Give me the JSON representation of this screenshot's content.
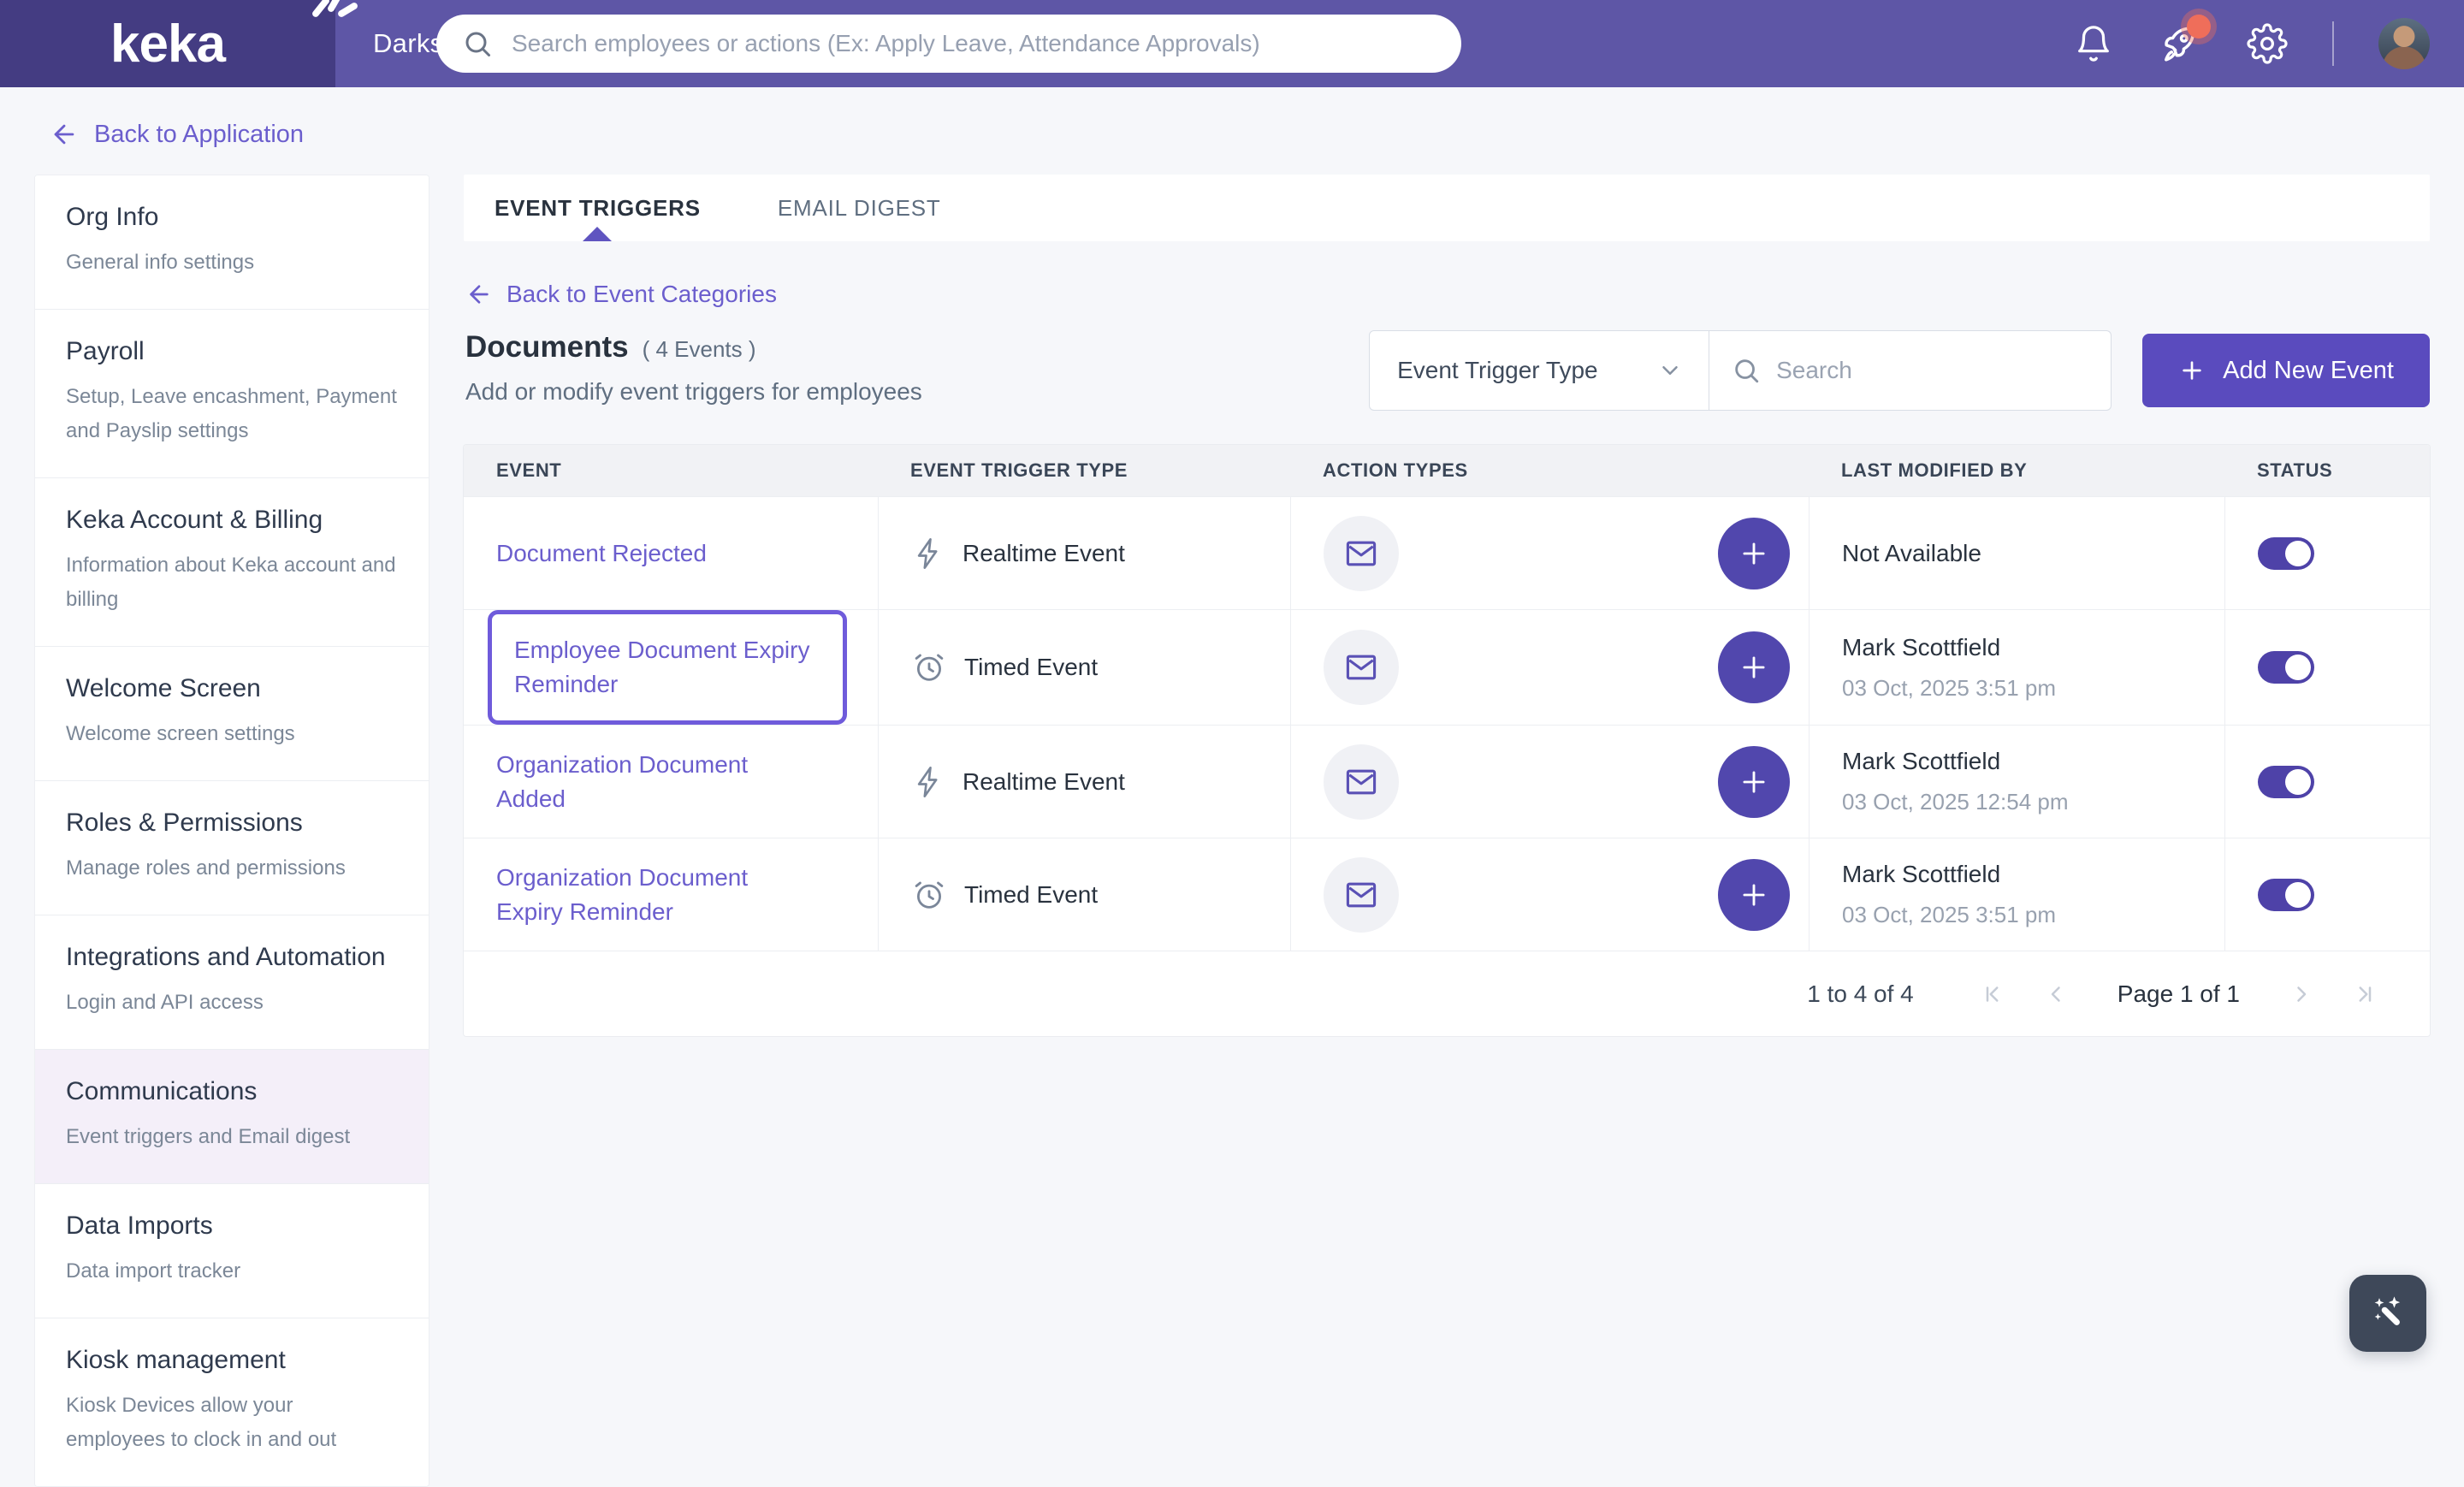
{
  "colors": {
    "header_purple": "#5E56A6",
    "logo_purple": "#443C82",
    "accent_button": "#5A4BBE",
    "link_purple": "#6B5ECD",
    "highlight_border": "#6F5BDB",
    "toggle_on": "#4E42A8",
    "notification_badge": "#EF6E5A",
    "selected_sidebar_bg": "#F4EFF9"
  },
  "header": {
    "logo": "keka",
    "company": "Darksiders Inc",
    "search_placeholder": "Search employees or actions (Ex: Apply Leave, Attendance Approvals)",
    "icons": [
      "bell-icon",
      "rocket-icon",
      "gear-icon",
      "avatar"
    ]
  },
  "nav": {
    "back_to_application": "Back to Application"
  },
  "sidebar": {
    "items": [
      {
        "title": "Org Info",
        "subtitle": "General info settings",
        "selected": false
      },
      {
        "title": "Payroll",
        "subtitle": "Setup, Leave encashment, Payment and Payslip settings",
        "selected": false
      },
      {
        "title": "Keka Account & Billing",
        "subtitle": "Information about Keka account and billing",
        "selected": false
      },
      {
        "title": "Welcome Screen",
        "subtitle": "Welcome screen settings",
        "selected": false
      },
      {
        "title": "Roles & Permissions",
        "subtitle": "Manage roles and permissions",
        "selected": false
      },
      {
        "title": "Integrations and Automation",
        "subtitle": "Login and API access",
        "selected": false
      },
      {
        "title": "Communications",
        "subtitle": "Event triggers and Email digest",
        "selected": true
      },
      {
        "title": "Data Imports",
        "subtitle": "Data import tracker",
        "selected": false
      },
      {
        "title": "Kiosk management",
        "subtitle": "Kiosk Devices allow your employees to clock in and out",
        "selected": false
      }
    ]
  },
  "main": {
    "tabs": [
      {
        "label": "EVENT TRIGGERS",
        "active": true
      },
      {
        "label": "EMAIL DIGEST",
        "active": false
      }
    ],
    "back_link": "Back to Event Categories",
    "title": "Documents",
    "title_suffix": "( 4 Events )",
    "subtitle": "Add or modify event triggers for employees",
    "filter_label": "Event Trigger Type",
    "search_placeholder": "Search",
    "add_button": "Add New Event",
    "table": {
      "columns": [
        "EVENT",
        "EVENT TRIGGER TYPE",
        "ACTION TYPES",
        "LAST MODIFIED BY",
        "STATUS"
      ],
      "rows": [
        {
          "event": "Document Rejected",
          "trigger_type": "Realtime Event",
          "trigger_icon": "lightning",
          "modified_by": "Not Available",
          "modified_date": "",
          "status_on": true,
          "highlighted": false
        },
        {
          "event": "Employee Document Expiry Reminder",
          "trigger_type": "Timed Event",
          "trigger_icon": "alarm",
          "modified_by": "Mark Scottfield",
          "modified_date": "03 Oct, 2025 3:51 pm",
          "status_on": true,
          "highlighted": true
        },
        {
          "event": "Organization Document Added",
          "trigger_type": "Realtime Event",
          "trigger_icon": "lightning",
          "modified_by": "Mark Scottfield",
          "modified_date": "03 Oct, 2025 12:54 pm",
          "status_on": true,
          "highlighted": false
        },
        {
          "event": "Organization Document Expiry Reminder",
          "trigger_type": "Timed Event",
          "trigger_icon": "alarm",
          "modified_by": "Mark Scottfield",
          "modified_date": "03 Oct, 2025 3:51 pm",
          "status_on": true,
          "highlighted": false
        }
      ]
    },
    "pagination": {
      "range": "1 to 4 of 4",
      "page": "Page 1 of 1"
    }
  }
}
